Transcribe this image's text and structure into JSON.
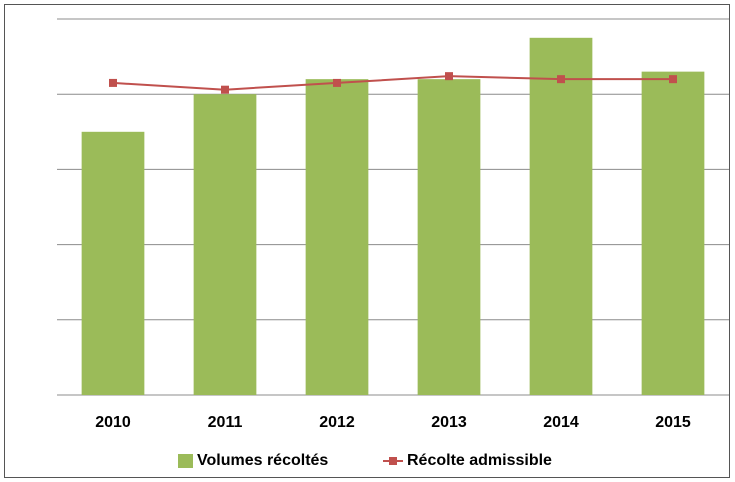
{
  "chart_data": {
    "type": "bar_line",
    "categories": [
      "2010",
      "2011",
      "2012",
      "2013",
      "2014",
      "2015"
    ],
    "series": [
      {
        "name": "Volumes récoltés",
        "color": "#9bbb59",
        "type": "bar",
        "values": [
          3.5,
          4.0,
          4.2,
          4.2,
          4.75,
          4.3
        ]
      },
      {
        "name": "Récolte admissible",
        "color": "#c0504d",
        "type": "line",
        "values": [
          4.15,
          4.06,
          4.15,
          4.24,
          4.2,
          4.2
        ]
      }
    ],
    "ylim": [
      0,
      5
    ],
    "yticks": [
      0,
      1,
      2,
      3,
      4,
      5
    ],
    "grid": true,
    "legend": "bottom"
  }
}
